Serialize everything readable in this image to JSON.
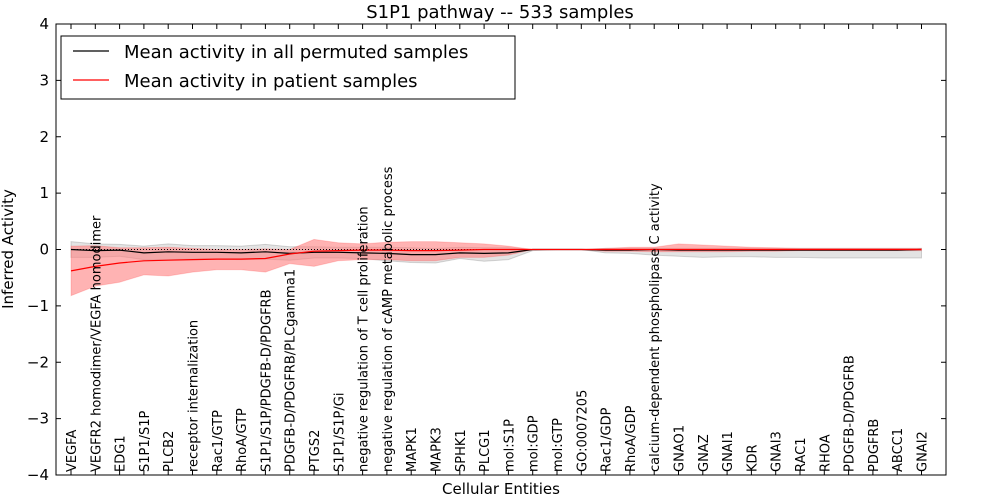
{
  "chart_data": {
    "type": "line",
    "title": "S1P1 pathway -- 533 samples",
    "xlabel": "Cellular Entities",
    "ylabel": "Inferred Activity",
    "ylim": [
      -4,
      4
    ],
    "yticks": [
      -4,
      -3,
      -2,
      -1,
      0,
      1,
      2,
      3,
      4
    ],
    "grid": false,
    "legend_position": "top-left",
    "categories": [
      "VEGFA",
      "VEGFR2 homodimer/VEGFA homodimer",
      "EDG1",
      "S1P1/S1P",
      "PLCB2",
      "receptor internalization",
      "Rac1/GTP",
      "RhoA/GTP",
      "S1P1/S1P/PDGFB-D/PDGFRB",
      "PDGFB-D/PDGFRB/PLCgamma1",
      "PTGS2",
      "S1P1/S1P/Gi",
      "negative regulation of T cell proliferation",
      "negative regulation of cAMP metabolic process",
      "MAPK1",
      "MAPK3",
      "SPHK1",
      "PLCG1",
      "mol:S1P",
      "mol:GDP",
      "mol:GTP",
      "GO:0007205",
      "Rac1/GDP",
      "RhoA/GDP",
      "calcium-dependent phospholipase C activity",
      "GNAO1",
      "GNAZ",
      "GNAI1",
      "KDR",
      "GNAI3",
      "RAC1",
      "RHOA",
      "PDGFB-D/PDGFRB",
      "PDGFRB",
      "ABCC1",
      "GNAI2"
    ],
    "series": [
      {
        "name": "Mean activity in all permuted samples",
        "color": "#000000",
        "values": [
          0.0,
          -0.02,
          -0.01,
          -0.06,
          -0.04,
          -0.05,
          -0.05,
          -0.06,
          -0.04,
          -0.07,
          -0.05,
          -0.05,
          -0.06,
          -0.07,
          -0.09,
          -0.09,
          -0.06,
          -0.07,
          -0.06,
          0.0,
          0.0,
          0.0,
          -0.01,
          -0.01,
          0.0,
          -0.01,
          -0.01,
          -0.01,
          -0.01,
          -0.01,
          -0.01,
          -0.01,
          -0.01,
          -0.01,
          -0.01,
          0.0
        ],
        "band_upper": [
          0.14,
          0.1,
          0.09,
          0.06,
          0.1,
          0.07,
          0.07,
          0.06,
          0.09,
          0.05,
          0.05,
          0.04,
          0.04,
          0.04,
          0.03,
          0.02,
          0.04,
          0.03,
          0.03,
          0.0,
          0.0,
          0.0,
          0.02,
          0.02,
          0.02,
          0.02,
          0.02,
          0.02,
          0.02,
          0.02,
          0.02,
          0.02,
          0.02,
          0.02,
          0.02,
          0.02
        ],
        "band_lower": [
          -0.14,
          -0.14,
          -0.12,
          -0.18,
          -0.18,
          -0.17,
          -0.17,
          -0.18,
          -0.17,
          -0.19,
          -0.15,
          -0.15,
          -0.16,
          -0.2,
          -0.23,
          -0.24,
          -0.16,
          -0.21,
          -0.18,
          -0.02,
          0.0,
          0.0,
          -0.06,
          -0.07,
          -0.1,
          -0.12,
          -0.14,
          -0.13,
          -0.13,
          -0.14,
          -0.14,
          -0.15,
          -0.15,
          -0.15,
          -0.15,
          -0.15
        ]
      },
      {
        "name": "Mean activity in patient samples",
        "color": "#ff0000",
        "values": [
          -0.38,
          -0.3,
          -0.24,
          -0.2,
          -0.19,
          -0.18,
          -0.17,
          -0.17,
          -0.16,
          -0.08,
          -0.03,
          -0.02,
          -0.01,
          -0.01,
          -0.02,
          -0.02,
          -0.01,
          0.0,
          0.0,
          0.0,
          0.0,
          0.0,
          0.0,
          0.0,
          0.0,
          0.0,
          0.0,
          0.0,
          0.0,
          0.0,
          0.0,
          0.0,
          0.0,
          0.0,
          0.0,
          0.0
        ],
        "band_upper": [
          0.06,
          0.07,
          0.03,
          0.03,
          0.04,
          0.02,
          0.0,
          0.0,
          0.01,
          0.0,
          0.18,
          0.12,
          0.1,
          0.13,
          0.14,
          0.14,
          0.12,
          0.1,
          0.06,
          0.0,
          0.0,
          0.0,
          0.02,
          0.04,
          0.04,
          0.1,
          0.08,
          0.06,
          0.04,
          0.03,
          0.02,
          0.02,
          0.02,
          0.02,
          0.02,
          0.02
        ],
        "band_lower": [
          -0.82,
          -0.65,
          -0.58,
          -0.45,
          -0.47,
          -0.4,
          -0.36,
          -0.36,
          -0.4,
          -0.25,
          -0.3,
          -0.2,
          -0.18,
          -0.18,
          -0.2,
          -0.2,
          -0.14,
          -0.14,
          -0.1,
          0.0,
          0.0,
          0.0,
          -0.03,
          -0.03,
          -0.04,
          -0.04,
          -0.04,
          -0.04,
          -0.03,
          -0.03,
          -0.02,
          -0.02,
          -0.02,
          -0.02,
          -0.02,
          -0.02
        ]
      }
    ],
    "band_colors": {
      "permuted": "#cccccc",
      "patient": "#ff8080"
    }
  }
}
